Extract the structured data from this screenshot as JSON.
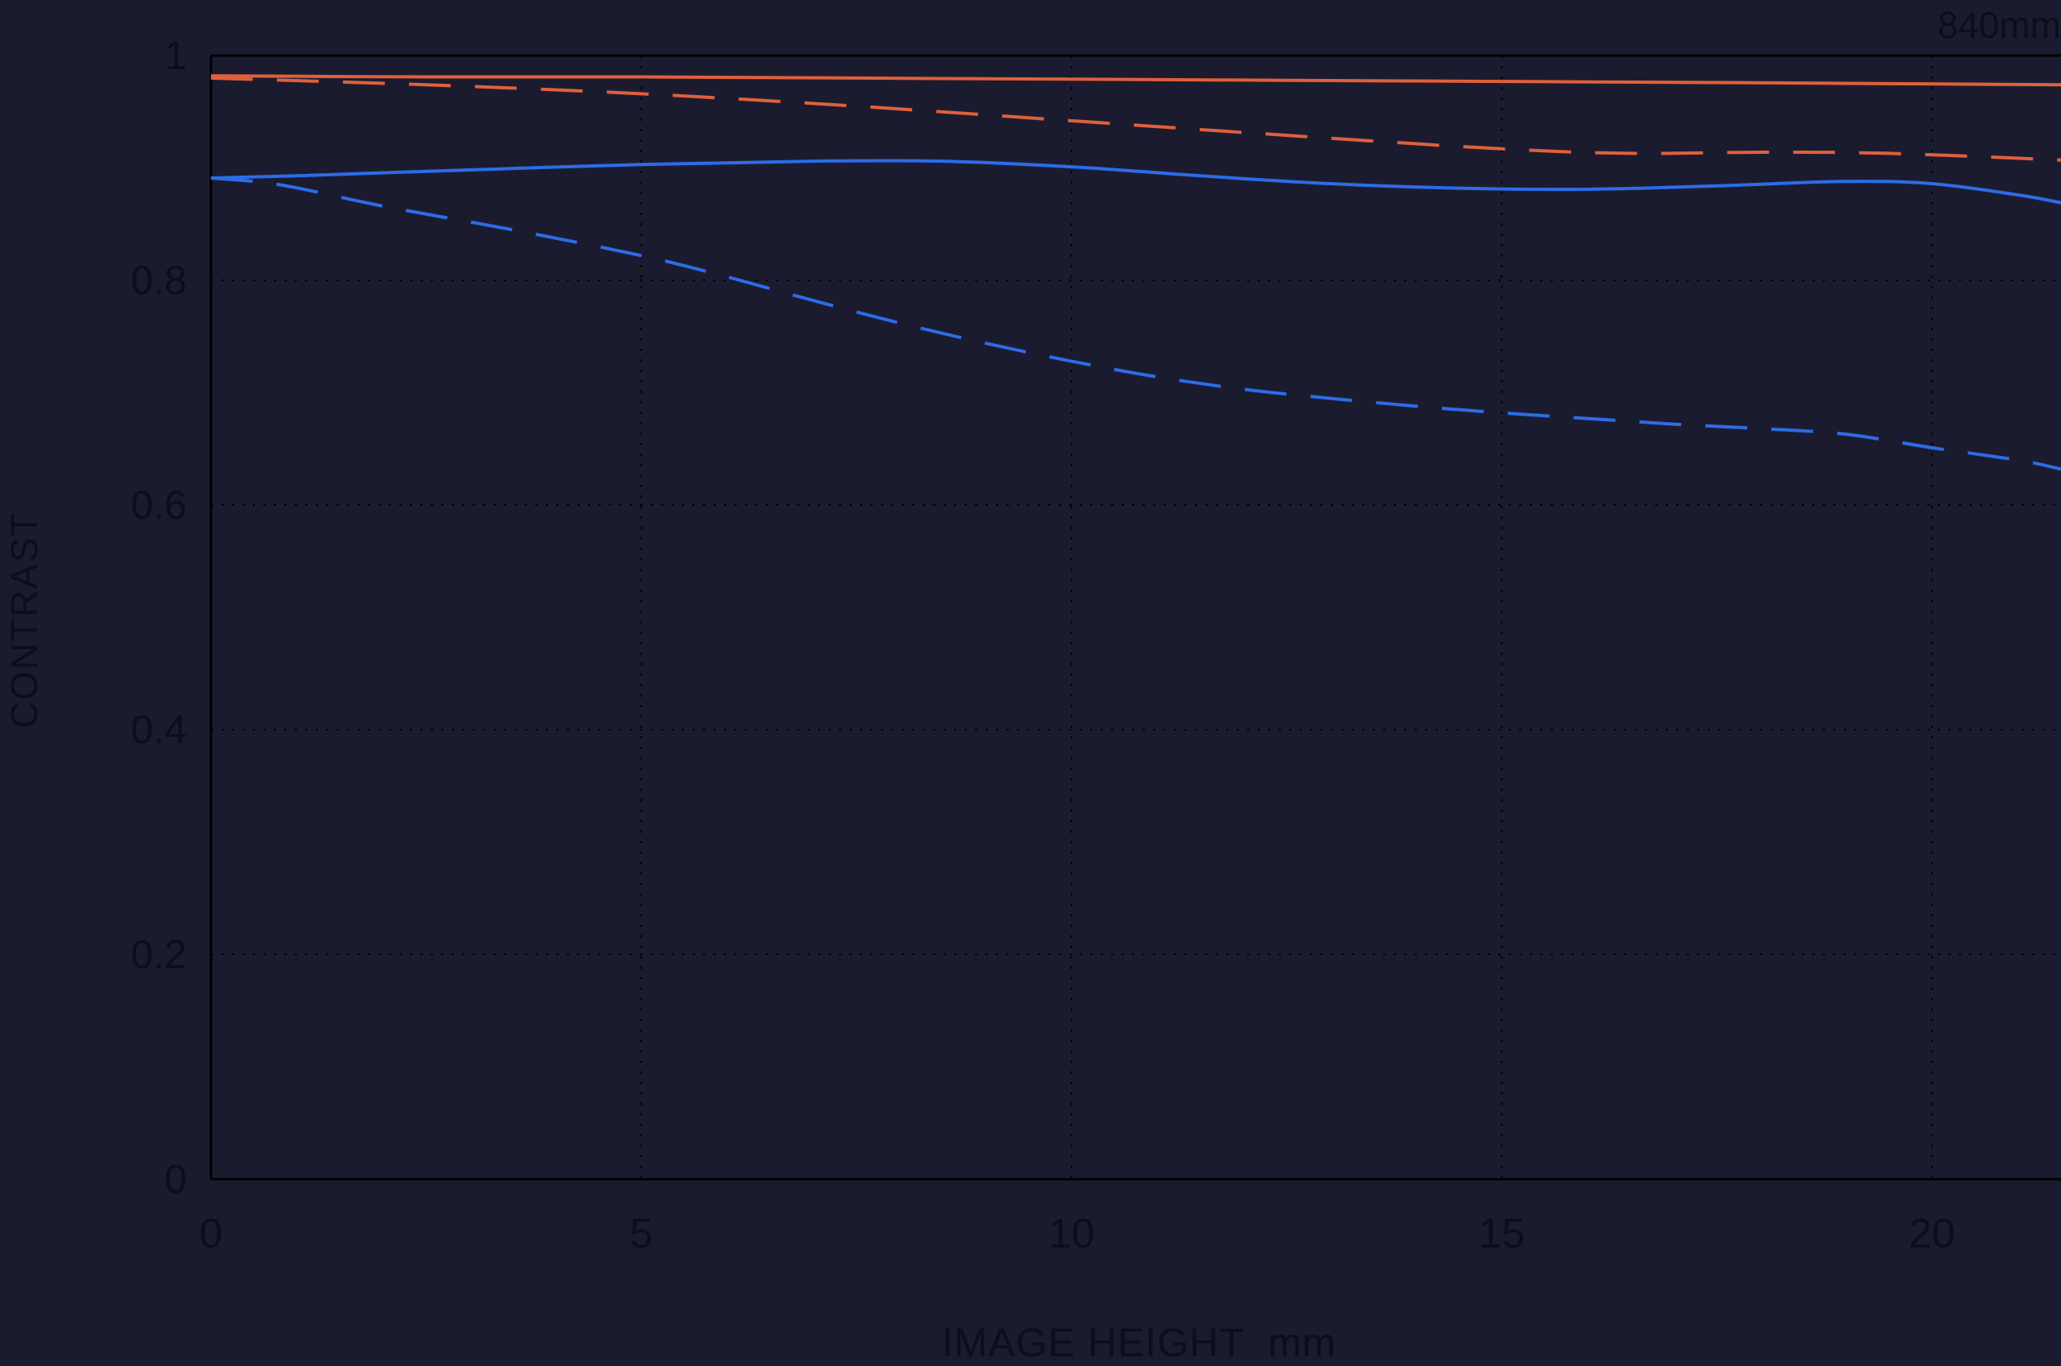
{
  "chart_data": {
    "type": "line",
    "title": "840mm",
    "xlabel": "IMAGE HEIGHT  mm",
    "ylabel": "CONTRAST",
    "xlim": [
      0,
      21.5
    ],
    "ylim": [
      0,
      1
    ],
    "xticks": [
      0,
      5,
      10,
      15,
      20
    ],
    "yticks": [
      0,
      0.2,
      0.4,
      0.6,
      0.8,
      1
    ],
    "grid": "dotted",
    "legend": "none",
    "series": [
      {
        "name": "orange-solid",
        "color": "#e0603a",
        "dash": "solid",
        "x": [
          0,
          2.5,
          5,
          7.5,
          10,
          12.5,
          15,
          17.5,
          19.5,
          21.5
        ],
        "y": [
          0.982,
          0.981,
          0.981,
          0.98,
          0.979,
          0.978,
          0.977,
          0.976,
          0.975,
          0.974
        ]
      },
      {
        "name": "orange-dashed",
        "color": "#e0603a",
        "dash": "dashed",
        "x": [
          0,
          2.5,
          5,
          7.5,
          10,
          12.5,
          15,
          16.5,
          18,
          19.5,
          21.5
        ],
        "y": [
          0.98,
          0.974,
          0.966,
          0.955,
          0.942,
          0.929,
          0.917,
          0.913,
          0.914,
          0.913,
          0.907
        ]
      },
      {
        "name": "blue-solid",
        "color": "#2c6ce8",
        "dash": "solid",
        "x": [
          0,
          1,
          2.5,
          5,
          7,
          8.5,
          10,
          11.5,
          13,
          14.5,
          16,
          17.5,
          19,
          20,
          21,
          21.5
        ],
        "y": [
          0.891,
          0.893,
          0.897,
          0.903,
          0.906,
          0.906,
          0.901,
          0.893,
          0.886,
          0.882,
          0.881,
          0.884,
          0.888,
          0.886,
          0.876,
          0.869
        ]
      },
      {
        "name": "blue-dashed",
        "color": "#2c6ce8",
        "dash": "dashed",
        "x": [
          0,
          0.8,
          2,
          3.5,
          5,
          6,
          7,
          8,
          9,
          10,
          11,
          12,
          13,
          14,
          15,
          16,
          17,
          18,
          19,
          20,
          21,
          21.5
        ],
        "y": [
          0.891,
          0.885,
          0.866,
          0.845,
          0.822,
          0.803,
          0.782,
          0.762,
          0.744,
          0.728,
          0.714,
          0.703,
          0.695,
          0.688,
          0.682,
          0.677,
          0.672,
          0.668,
          0.663,
          0.651,
          0.64,
          0.632
        ]
      }
    ]
  },
  "style": {
    "background": "#1b1b30",
    "text_color": "#0d0d1b",
    "axis_color": "#000000"
  }
}
